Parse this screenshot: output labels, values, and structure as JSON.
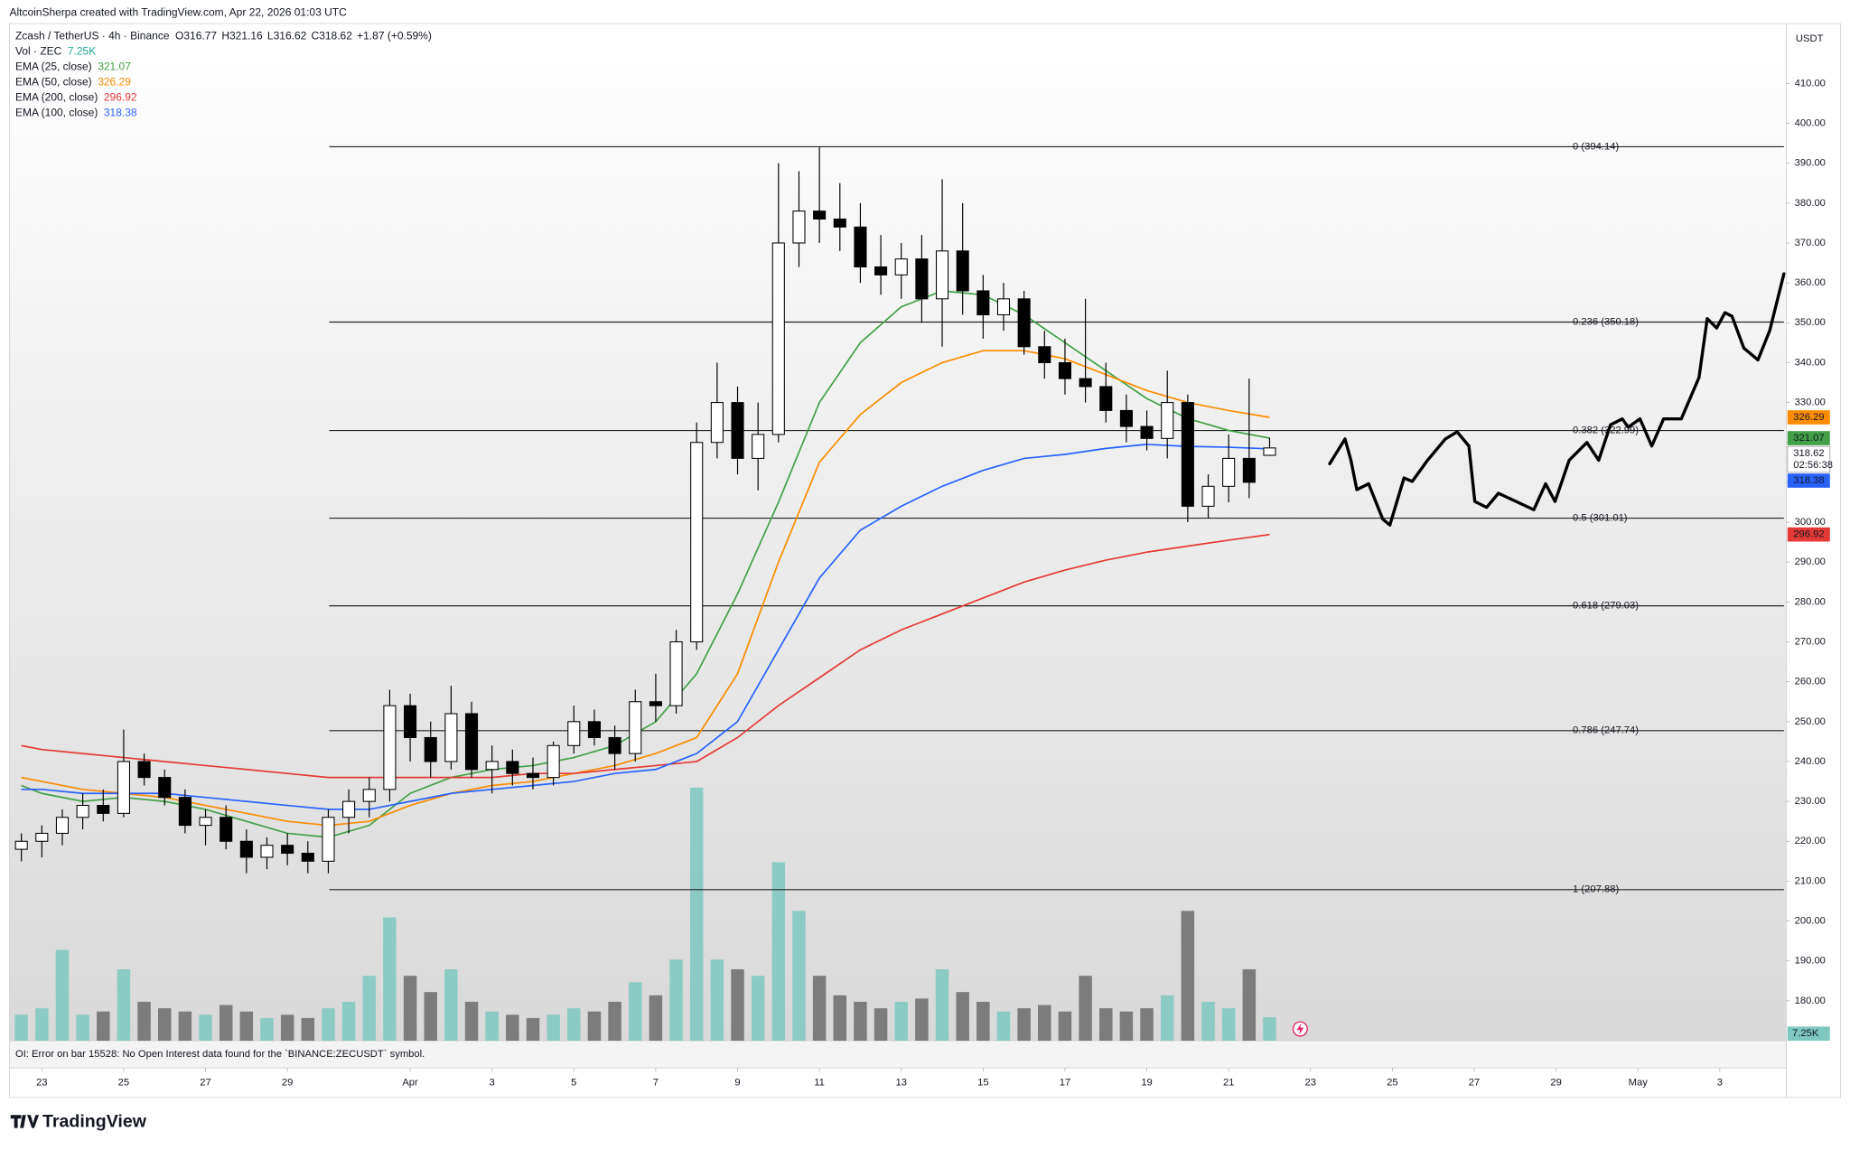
{
  "header": {
    "credit": "AltcoinSherpa created with TradingView.com, Apr 22, 2026 01:03 UTC"
  },
  "footer": {
    "message": "OI: Error on bar 15528: No Open Interest data found for the `BINANCE:ZECUSDT` symbol.",
    "brand": "TradingView"
  },
  "chart_data": {
    "type": "candlestick",
    "legend": {
      "symbol": "Zcash / TetherUS · 4h · Binance",
      "ohlc_keys": [
        "O",
        "H",
        "L",
        "C"
      ],
      "change": "+1.87 (+0.59%)",
      "volume_name": "Vol · ZEC",
      "volume_value": "7.25K"
    },
    "currency": "USDT",
    "countdown": "02:56:38",
    "xlim": [
      "2026-03-22T05:00Z",
      "2026-05-04T15:00Z"
    ],
    "xticks": [
      {
        "value": "2026-03-23T00:00Z",
        "label": "23"
      },
      {
        "value": "2026-03-25T00:00Z",
        "label": "25"
      },
      {
        "value": "2026-03-27T00:00Z",
        "label": "27"
      },
      {
        "value": "2026-03-29T00:00Z",
        "label": "29"
      },
      {
        "value": "2026-04-01T00:00Z",
        "label": "Apr"
      },
      {
        "value": "2026-04-03T00:00Z",
        "label": "3"
      },
      {
        "value": "2026-04-05T00:00Z",
        "label": "5"
      },
      {
        "value": "2026-04-07T00:00Z",
        "label": "7"
      },
      {
        "value": "2026-04-09T00:00Z",
        "label": "9"
      },
      {
        "value": "2026-04-11T00:00Z",
        "label": "11"
      },
      {
        "value": "2026-04-13T00:00Z",
        "label": "13"
      },
      {
        "value": "2026-04-15T00:00Z",
        "label": "15"
      },
      {
        "value": "2026-04-17T00:00Z",
        "label": "17"
      },
      {
        "value": "2026-04-19T00:00Z",
        "label": "19"
      },
      {
        "value": "2026-04-21T00:00Z",
        "label": "21"
      },
      {
        "value": "2026-04-23T00:00Z",
        "label": "23"
      },
      {
        "value": "2026-04-25T00:00Z",
        "label": "25"
      },
      {
        "value": "2026-04-27T00:00Z",
        "label": "27"
      },
      {
        "value": "2026-04-29T00:00Z",
        "label": "29"
      },
      {
        "value": "2026-05-01T00:00Z",
        "label": "May"
      },
      {
        "value": "2026-05-03T00:00Z",
        "label": "3"
      }
    ],
    "ylim": [
      170,
      425
    ],
    "yticks": [
      {
        "value": 180,
        "label": "180.00"
      },
      {
        "value": 190,
        "label": "190.00"
      },
      {
        "value": 200,
        "label": "200.00"
      },
      {
        "value": 210,
        "label": "210.00"
      },
      {
        "value": 220,
        "label": "220.00"
      },
      {
        "value": 230,
        "label": "230.00"
      },
      {
        "value": 240,
        "label": "240.00"
      },
      {
        "value": 250,
        "label": "250.00"
      },
      {
        "value": 260,
        "label": "260.00"
      },
      {
        "value": 270,
        "label": "270.00"
      },
      {
        "value": 280,
        "label": "280.00"
      },
      {
        "value": 290,
        "label": "290.00"
      },
      {
        "value": 300,
        "label": "300.00"
      },
      {
        "value": 310,
        "label": "310.00"
      },
      {
        "value": 320,
        "label": "320.00"
      },
      {
        "value": 330,
        "label": "330.00"
      },
      {
        "value": 340,
        "label": "340.00"
      },
      {
        "value": 350,
        "label": "350.00"
      },
      {
        "value": 360,
        "label": "360.00"
      },
      {
        "value": 370,
        "label": "370.00"
      },
      {
        "value": 380,
        "label": "380.00"
      },
      {
        "value": 390,
        "label": "390.00"
      },
      {
        "value": 400,
        "label": "400.00"
      },
      {
        "value": 410,
        "label": "410.00"
      }
    ],
    "candles": {
      "x": [
        "2026-03-22T12:00Z",
        "2026-03-23T00:00Z",
        "2026-03-23T12:00Z",
        "2026-03-24T00:00Z",
        "2026-03-24T12:00Z",
        "2026-03-25T00:00Z",
        "2026-03-25T12:00Z",
        "2026-03-26T00:00Z",
        "2026-03-26T12:00Z",
        "2026-03-27T00:00Z",
        "2026-03-27T12:00Z",
        "2026-03-28T00:00Z",
        "2026-03-28T12:00Z",
        "2026-03-29T00:00Z",
        "2026-03-29T12:00Z",
        "2026-03-30T00:00Z",
        "2026-03-30T12:00Z",
        "2026-03-31T00:00Z",
        "2026-03-31T12:00Z",
        "2026-04-01T00:00Z",
        "2026-04-01T12:00Z",
        "2026-04-02T00:00Z",
        "2026-04-02T12:00Z",
        "2026-04-03T00:00Z",
        "2026-04-03T12:00Z",
        "2026-04-04T00:00Z",
        "2026-04-04T12:00Z",
        "2026-04-05T00:00Z",
        "2026-04-05T12:00Z",
        "2026-04-06T00:00Z",
        "2026-04-06T12:00Z",
        "2026-04-07T00:00Z",
        "2026-04-07T12:00Z",
        "2026-04-08T00:00Z",
        "2026-04-08T12:00Z",
        "2026-04-09T00:00Z",
        "2026-04-09T12:00Z",
        "2026-04-10T00:00Z",
        "2026-04-10T12:00Z",
        "2026-04-11T00:00Z",
        "2026-04-11T12:00Z",
        "2026-04-12T00:00Z",
        "2026-04-12T12:00Z",
        "2026-04-13T00:00Z",
        "2026-04-13T12:00Z",
        "2026-04-14T00:00Z",
        "2026-04-14T12:00Z",
        "2026-04-15T00:00Z",
        "2026-04-15T12:00Z",
        "2026-04-16T00:00Z",
        "2026-04-16T12:00Z",
        "2026-04-17T00:00Z",
        "2026-04-17T12:00Z",
        "2026-04-18T00:00Z",
        "2026-04-18T12:00Z",
        "2026-04-19T00:00Z",
        "2026-04-19T12:00Z",
        "2026-04-20T00:00Z",
        "2026-04-20T12:00Z",
        "2026-04-21T00:00Z",
        "2026-04-21T12:00Z",
        "2026-04-22T00:00Z"
      ],
      "open": [
        218,
        220,
        222,
        226,
        229,
        227,
        240,
        236,
        231,
        224,
        226,
        220,
        216,
        219,
        217,
        215,
        226,
        230,
        233,
        254,
        246,
        240,
        252,
        238,
        240,
        237,
        236,
        244,
        250,
        246,
        242,
        255,
        254,
        270,
        320,
        330,
        316,
        322,
        370,
        378,
        376,
        374,
        364,
        362,
        366,
        356,
        368,
        358,
        352,
        356,
        344,
        340,
        336,
        334,
        328,
        324,
        321,
        330,
        304,
        309,
        316,
        316.77
      ],
      "high": [
        222,
        224,
        228,
        232,
        233,
        248,
        242,
        238,
        233,
        228,
        229,
        223,
        221,
        222,
        220,
        228,
        233,
        236,
        258,
        257,
        250,
        259,
        255,
        244,
        243,
        241,
        245,
        254,
        253,
        249,
        258,
        262,
        273,
        325,
        340,
        334,
        330,
        390,
        388,
        394,
        385,
        380,
        372,
        370,
        372,
        386,
        380,
        362,
        360,
        358,
        348,
        346,
        356,
        340,
        332,
        328,
        338,
        332,
        312,
        322,
        336,
        321.16
      ],
      "low": [
        215,
        216,
        219,
        223,
        225,
        226,
        234,
        229,
        222,
        219,
        218,
        212,
        213,
        214,
        212,
        212,
        222,
        226,
        230,
        240,
        236,
        238,
        236,
        232,
        234,
        233,
        234,
        242,
        244,
        238,
        240,
        250,
        252,
        268,
        316,
        312,
        308,
        320,
        364,
        370,
        368,
        360,
        357,
        356,
        350,
        344,
        352,
        346,
        348,
        342,
        336,
        332,
        330,
        325,
        320,
        318,
        316,
        300,
        301,
        305,
        306,
        316.62
      ],
      "close": [
        220,
        222,
        226,
        229,
        227,
        240,
        236,
        231,
        224,
        226,
        220,
        216,
        219,
        217,
        215,
        226,
        230,
        233,
        254,
        246,
        240,
        252,
        238,
        240,
        237,
        236,
        244,
        250,
        246,
        242,
        255,
        254,
        270,
        320,
        330,
        316,
        322,
        370,
        378,
        376,
        374,
        364,
        362,
        366,
        356,
        368,
        358,
        352,
        356,
        344,
        340,
        336,
        334,
        328,
        324,
        321,
        330,
        304,
        309,
        316,
        310,
        318.62
      ],
      "up_color": "#ffffff",
      "down_color": "#000000",
      "outline": "#000000"
    },
    "volume": {
      "lim": [
        0,
        80
      ],
      "up_color": "#7ec8c0",
      "down_color": "#6b6b6b",
      "values": [
        8,
        10,
        28,
        8,
        9,
        22,
        12,
        10,
        9,
        8,
        11,
        9,
        7,
        8,
        7,
        10,
        12,
        20,
        38,
        20,
        15,
        22,
        12,
        9,
        8,
        7,
        8,
        10,
        9,
        12,
        18,
        14,
        25,
        78,
        25,
        22,
        20,
        55,
        40,
        20,
        14,
        12,
        10,
        12,
        13,
        22,
        15,
        12,
        9,
        10,
        11,
        9,
        20,
        10,
        9,
        10,
        14,
        40,
        12,
        10,
        22,
        7.25
      ]
    },
    "series": [
      {
        "name": "EMA (25, close)",
        "color": "#43a047",
        "values": [
          234,
          232,
          230,
          231,
          230,
          228,
          225,
          222,
          221,
          224,
          232,
          236,
          238,
          239,
          241,
          244,
          250,
          262,
          282,
          305,
          330,
          345,
          354,
          358,
          357,
          352,
          345,
          338,
          331,
          326,
          323,
          321.07
        ]
      },
      {
        "name": "EMA (50, close)",
        "color": "#fb8c00",
        "values": [
          236,
          235,
          233,
          232,
          231,
          229,
          227,
          225,
          224,
          225,
          229,
          232,
          234,
          235,
          237,
          239,
          242,
          246,
          262,
          290,
          315,
          327,
          335,
          340,
          343,
          343,
          341,
          337,
          333,
          330,
          328,
          326.29
        ]
      },
      {
        "name": "EMA (200, close)",
        "color": "#e53935",
        "values": [
          244,
          243,
          242,
          241,
          240,
          239,
          238,
          237,
          236,
          236,
          236,
          236,
          236,
          237,
          237,
          238,
          239,
          240,
          246,
          254,
          261,
          268,
          273,
          277,
          281,
          285,
          288,
          290.5,
          292.5,
          294,
          295.5,
          296.92
        ]
      },
      {
        "name": "EMA (100, close)",
        "color": "#2962ff",
        "values": [
          233,
          233,
          232,
          232,
          232,
          231,
          230,
          229,
          228,
          228,
          230,
          232,
          233,
          234,
          235,
          237,
          238,
          242,
          250,
          268,
          286,
          298,
          304,
          309,
          313,
          316,
          317,
          318.5,
          319.5,
          319,
          318.8,
          318.38
        ]
      }
    ],
    "series_x": [
      "2026-03-22T12:00Z",
      "2026-03-23T00:00Z",
      "2026-03-24T00:00Z",
      "2026-03-25T00:00Z",
      "2026-03-26T00:00Z",
      "2026-03-27T00:00Z",
      "2026-03-28T00:00Z",
      "2026-03-29T00:00Z",
      "2026-03-30T00:00Z",
      "2026-03-31T00:00Z",
      "2026-04-01T00:00Z",
      "2026-04-02T00:00Z",
      "2026-04-03T00:00Z",
      "2026-04-04T00:00Z",
      "2026-04-05T00:00Z",
      "2026-04-06T00:00Z",
      "2026-04-07T00:00Z",
      "2026-04-08T00:00Z",
      "2026-04-09T00:00Z",
      "2026-04-10T00:00Z",
      "2026-04-11T00:00Z",
      "2026-04-12T00:00Z",
      "2026-04-13T00:00Z",
      "2026-04-14T00:00Z",
      "2026-04-15T00:00Z",
      "2026-04-16T00:00Z",
      "2026-04-17T00:00Z",
      "2026-04-18T00:00Z",
      "2026-04-19T00:00Z",
      "2026-04-20T00:00Z",
      "2026-04-21T00:00Z",
      "2026-04-22T00:00Z"
    ],
    "fib_levels": [
      {
        "price": 394.14,
        "label": "0 (394.14)"
      },
      {
        "price": 350.18,
        "label": "0.236 (350.18)"
      },
      {
        "price": 322.99,
        "label": "0.382 (322.99)"
      },
      {
        "price": 301.01,
        "label": "0.5 (301.01)"
      },
      {
        "price": 279.03,
        "label": "0.618 (279.03)"
      },
      {
        "price": 247.74,
        "label": "0.786 (247.74)"
      },
      {
        "price": 207.88,
        "label": "1 (207.88)"
      }
    ]
  }
}
